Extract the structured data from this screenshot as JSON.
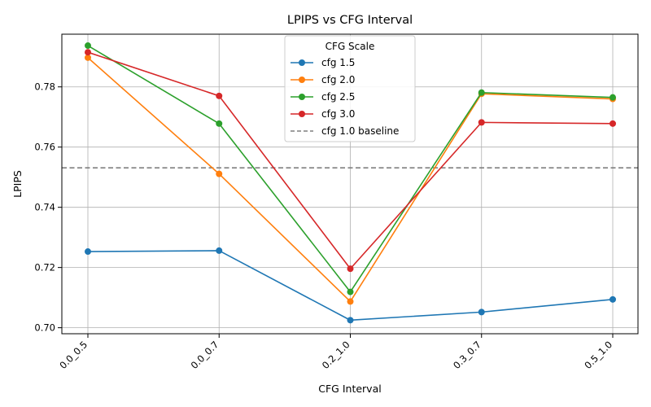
{
  "chart_data": {
    "type": "line",
    "title": "LPIPS vs CFG Interval",
    "xlabel": "CFG Interval",
    "ylabel": "LPIPS",
    "categories": [
      "0.0_0.5",
      "0.0_0.7",
      "0.2_1.0",
      "0.3_0.7",
      "0.5_1.0"
    ],
    "ylim": [
      0.698,
      0.7975
    ],
    "yticks": [
      0.7,
      0.72,
      0.74,
      0.76,
      0.78
    ],
    "ytick_labels": [
      "0.70",
      "0.72",
      "0.74",
      "0.76",
      "0.78"
    ],
    "grid": true,
    "legend": {
      "title": "CFG Scale",
      "position": "upper-center"
    },
    "series": [
      {
        "name": "cfg 1.5",
        "color": "#1f77b4",
        "values": [
          0.7253,
          0.7256,
          0.7025,
          0.7052,
          0.7094
        ]
      },
      {
        "name": "cfg 2.0",
        "color": "#ff7f0e",
        "values": [
          0.7897,
          0.7511,
          0.7087,
          0.7777,
          0.776
        ]
      },
      {
        "name": "cfg 2.5",
        "color": "#2ca02c",
        "values": [
          0.7937,
          0.7678,
          0.7119,
          0.7781,
          0.7765
        ]
      },
      {
        "name": "cfg 3.0",
        "color": "#d62728",
        "values": [
          0.7915,
          0.777,
          0.7196,
          0.7682,
          0.7678
        ]
      }
    ],
    "baseline": {
      "name": "cfg 1.0 baseline",
      "value": 0.7531,
      "color": "#7f7f7f"
    }
  }
}
